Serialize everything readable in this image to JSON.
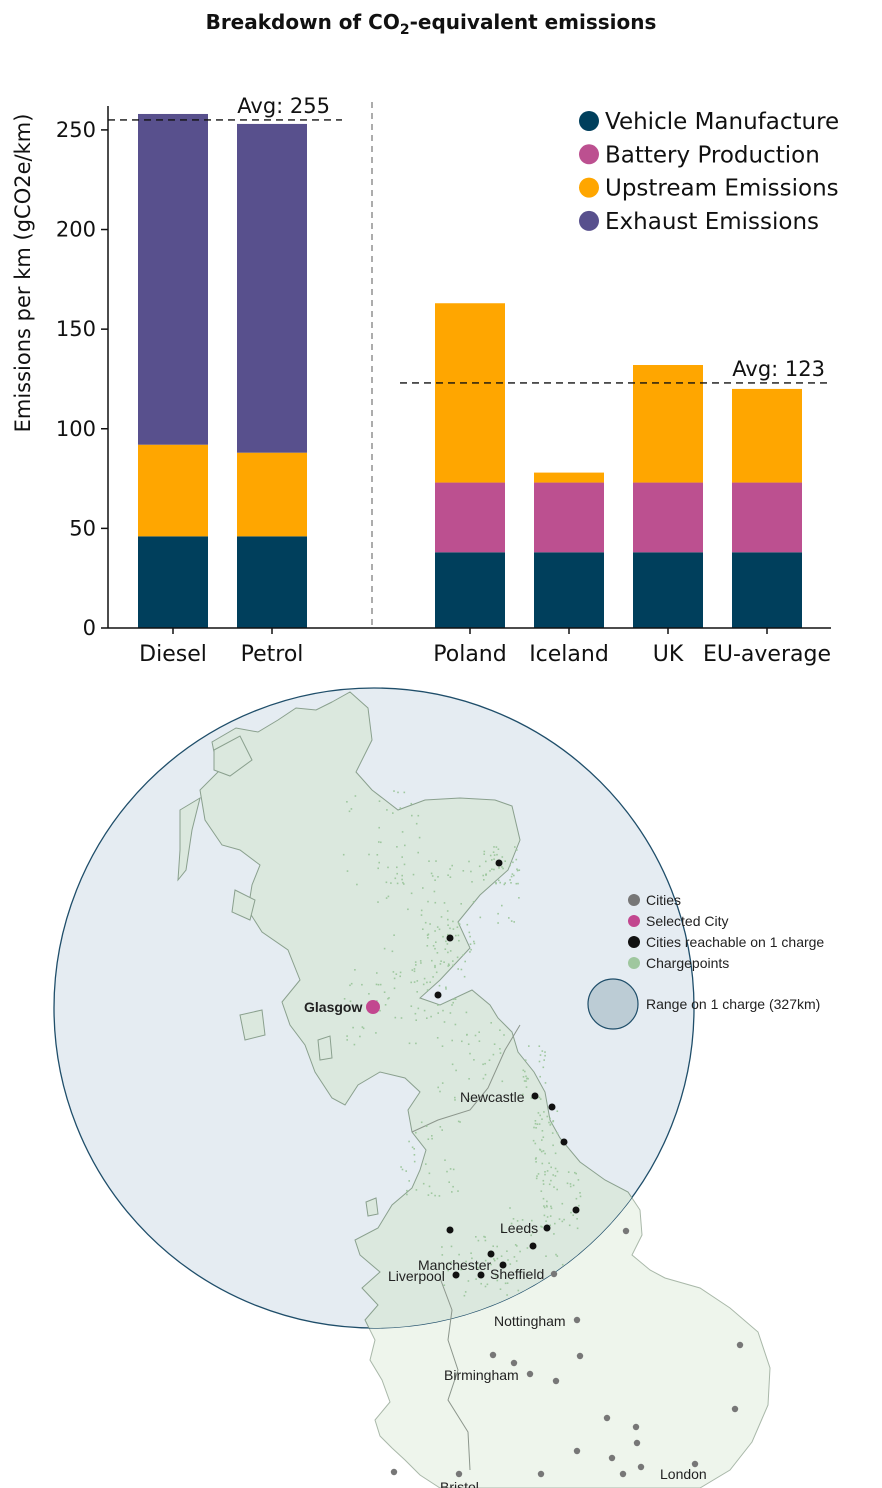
{
  "title": {
    "prefix": "Breakdown of CO",
    "subscript": "2",
    "suffix": "-equivalent emissions"
  },
  "colors": {
    "vehicle_manufacture": "#003f5c",
    "battery_production": "#bc5090",
    "upstream_emissions": "#ffa600",
    "exhaust_emissions": "#58508d",
    "map_land_in_range": "#dbe8de",
    "map_land_out_range": "#eef5ec",
    "range_circle_fill": "#e5ecf2",
    "range_circle_stroke": "#1f4e6a",
    "cities": "#777777",
    "selected_city": "#c2478f",
    "cities_reachable": "#111111",
    "chargepoints": "#9fc79f"
  },
  "chart_data": {
    "type": "bar",
    "stacked": true,
    "categories": [
      "Diesel",
      "Petrol",
      "Poland",
      "Iceland",
      "UK",
      "EU-average"
    ],
    "series": [
      {
        "name": "Vehicle Manufacture",
        "values": [
          46,
          46,
          38,
          38,
          38,
          38
        ]
      },
      {
        "name": "Battery Production",
        "values": [
          0,
          0,
          35,
          35,
          35,
          35
        ]
      },
      {
        "name": "Upstream Emissions",
        "values": [
          46,
          42,
          90,
          5,
          59,
          47
        ]
      },
      {
        "name": "Exhaust Emissions",
        "values": [
          166,
          165,
          0,
          0,
          0,
          0
        ]
      }
    ],
    "ylabel": "Emissions per km (gCO2e/km)",
    "yticks": [
      "0",
      "50",
      "100",
      "150",
      "200",
      "250"
    ],
    "ylim": [
      0,
      262
    ],
    "legend_position": "top-right",
    "reference_lines": [
      {
        "label": "Avg: 255",
        "value": 255,
        "group": "combustion"
      },
      {
        "label": "Avg: 123",
        "value": 123,
        "group": "electric"
      }
    ]
  },
  "map": {
    "legend": {
      "cities": "Cities",
      "selected_city": "Selected City",
      "reachable": "Cities reachable on 1 charge",
      "chargepoints": "Chargepoints",
      "range": "Range on 1 charge (327km)"
    },
    "selected_city": "Glasgow",
    "labels": {
      "newcastle": "Newcastle",
      "leeds": "Leeds",
      "manchester": "Manchester",
      "liverpool": "Liverpool",
      "sheffield": "Sheffield",
      "nottingham": "Nottingham",
      "birmingham": "Birmingham",
      "london": "London",
      "bristol": "Bristol"
    }
  }
}
